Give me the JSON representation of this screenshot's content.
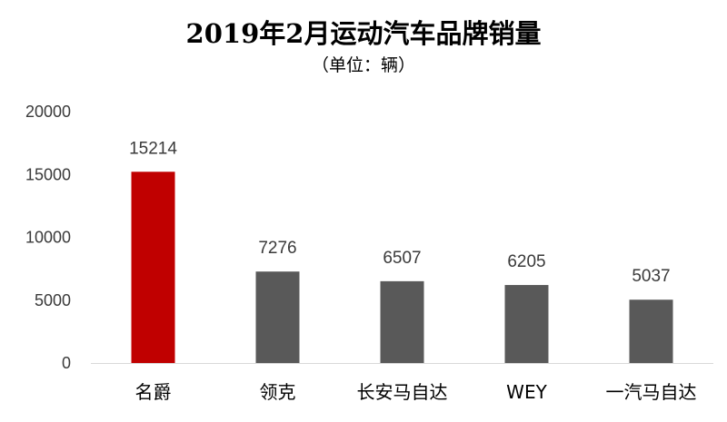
{
  "chart_data": {
    "type": "bar",
    "title": "2019年2月运动汽车品牌销量",
    "subtitle": "（单位：辆）",
    "categories": [
      "名爵",
      "领克",
      "长安马自达",
      "WEY",
      "一汽马自达"
    ],
    "values": [
      15214,
      7276,
      6507,
      6205,
      5037
    ],
    "data_labels": [
      "15214",
      "7276",
      "6507",
      "6205",
      "5037"
    ],
    "ylim": [
      0,
      20000
    ],
    "yticks": [
      0,
      5000,
      10000,
      15000,
      20000
    ],
    "grid": false,
    "legend": "none",
    "colors": [
      "#c00000",
      "#595959",
      "#595959",
      "#595959",
      "#595959"
    ]
  }
}
